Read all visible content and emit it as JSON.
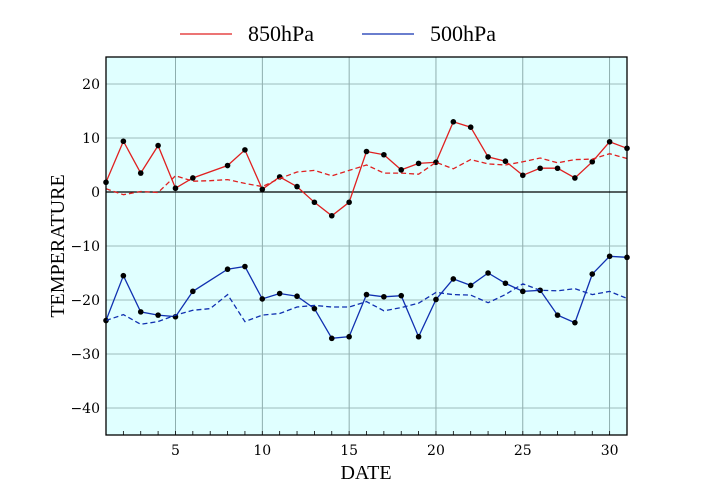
{
  "chart_data": {
    "type": "line",
    "xlabel": "DATE",
    "ylabel": "TEMPERATURE",
    "xlim": [
      1,
      31
    ],
    "ylim": [
      -45,
      25
    ],
    "xticks": [
      5,
      10,
      15,
      20,
      25,
      30
    ],
    "yticks": [
      20,
      10,
      0,
      -10,
      -20,
      -30,
      -40
    ],
    "grid": true,
    "legend": "top",
    "background": "#e0ffff",
    "x": [
      1,
      2,
      3,
      4,
      5,
      6,
      7,
      8,
      9,
      10,
      11,
      12,
      13,
      14,
      15,
      16,
      17,
      18,
      19,
      20,
      21,
      22,
      23,
      24,
      25,
      26,
      27,
      28,
      29,
      30,
      31
    ],
    "series": [
      {
        "name": "850hPa",
        "color": "#e02020",
        "style": "solid",
        "markers": true,
        "values": [
          1.8,
          9.4,
          3.5,
          8.6,
          0.7,
          2.6,
          null,
          4.9,
          7.8,
          0.5,
          2.8,
          1.0,
          -1.9,
          -4.4,
          -1.9,
          7.5,
          6.9,
          4.1,
          5.3,
          5.5,
          13.0,
          12.0,
          6.5,
          5.7,
          3.1,
          4.4,
          4.4,
          2.6,
          5.6,
          9.3,
          8.1
        ]
      },
      {
        "name": "",
        "color": "#e02020",
        "style": "dashed",
        "markers": false,
        "values": [
          0.6,
          -0.5,
          0.1,
          -0.1,
          3.0,
          2.0,
          2.1,
          2.3,
          1.6,
          1.0,
          2.5,
          3.7,
          4.0,
          3.0,
          4.0,
          5.0,
          3.5,
          3.5,
          3.3,
          5.5,
          4.3,
          6.0,
          5.2,
          5.0,
          5.6,
          6.3,
          5.4,
          6.0,
          6.1,
          7.1,
          6.2
        ]
      },
      {
        "name": "500hPa",
        "color": "#1030b0",
        "style": "solid",
        "markers": true,
        "values": [
          -23.8,
          -15.5,
          -22.2,
          -22.8,
          -23.1,
          -18.4,
          null,
          -14.3,
          -13.8,
          -19.8,
          -18.8,
          -19.3,
          -21.6,
          -27.1,
          -26.8,
          -19.0,
          -19.4,
          -19.2,
          -26.8,
          -19.9,
          -16.1,
          -17.3,
          -15.0,
          -16.9,
          -18.4,
          -18.2,
          -22.8,
          -24.2,
          -15.2,
          -11.9,
          -12.1
        ]
      },
      {
        "name": "",
        "color": "#1030b0",
        "style": "dashed",
        "markers": false,
        "values": [
          -23.8,
          -22.7,
          -24.5,
          -24.0,
          -22.8,
          -21.9,
          -21.6,
          -19.0,
          -24.0,
          -22.8,
          -22.5,
          -21.3,
          -21.0,
          -21.3,
          -21.3,
          -20.3,
          -22.0,
          -21.4,
          -20.6,
          -18.6,
          -19.0,
          -19.1,
          -20.5,
          -19.0,
          -17.0,
          -18.2,
          -18.3,
          -17.9,
          -19.0,
          -18.4,
          -19.7
        ]
      }
    ]
  }
}
